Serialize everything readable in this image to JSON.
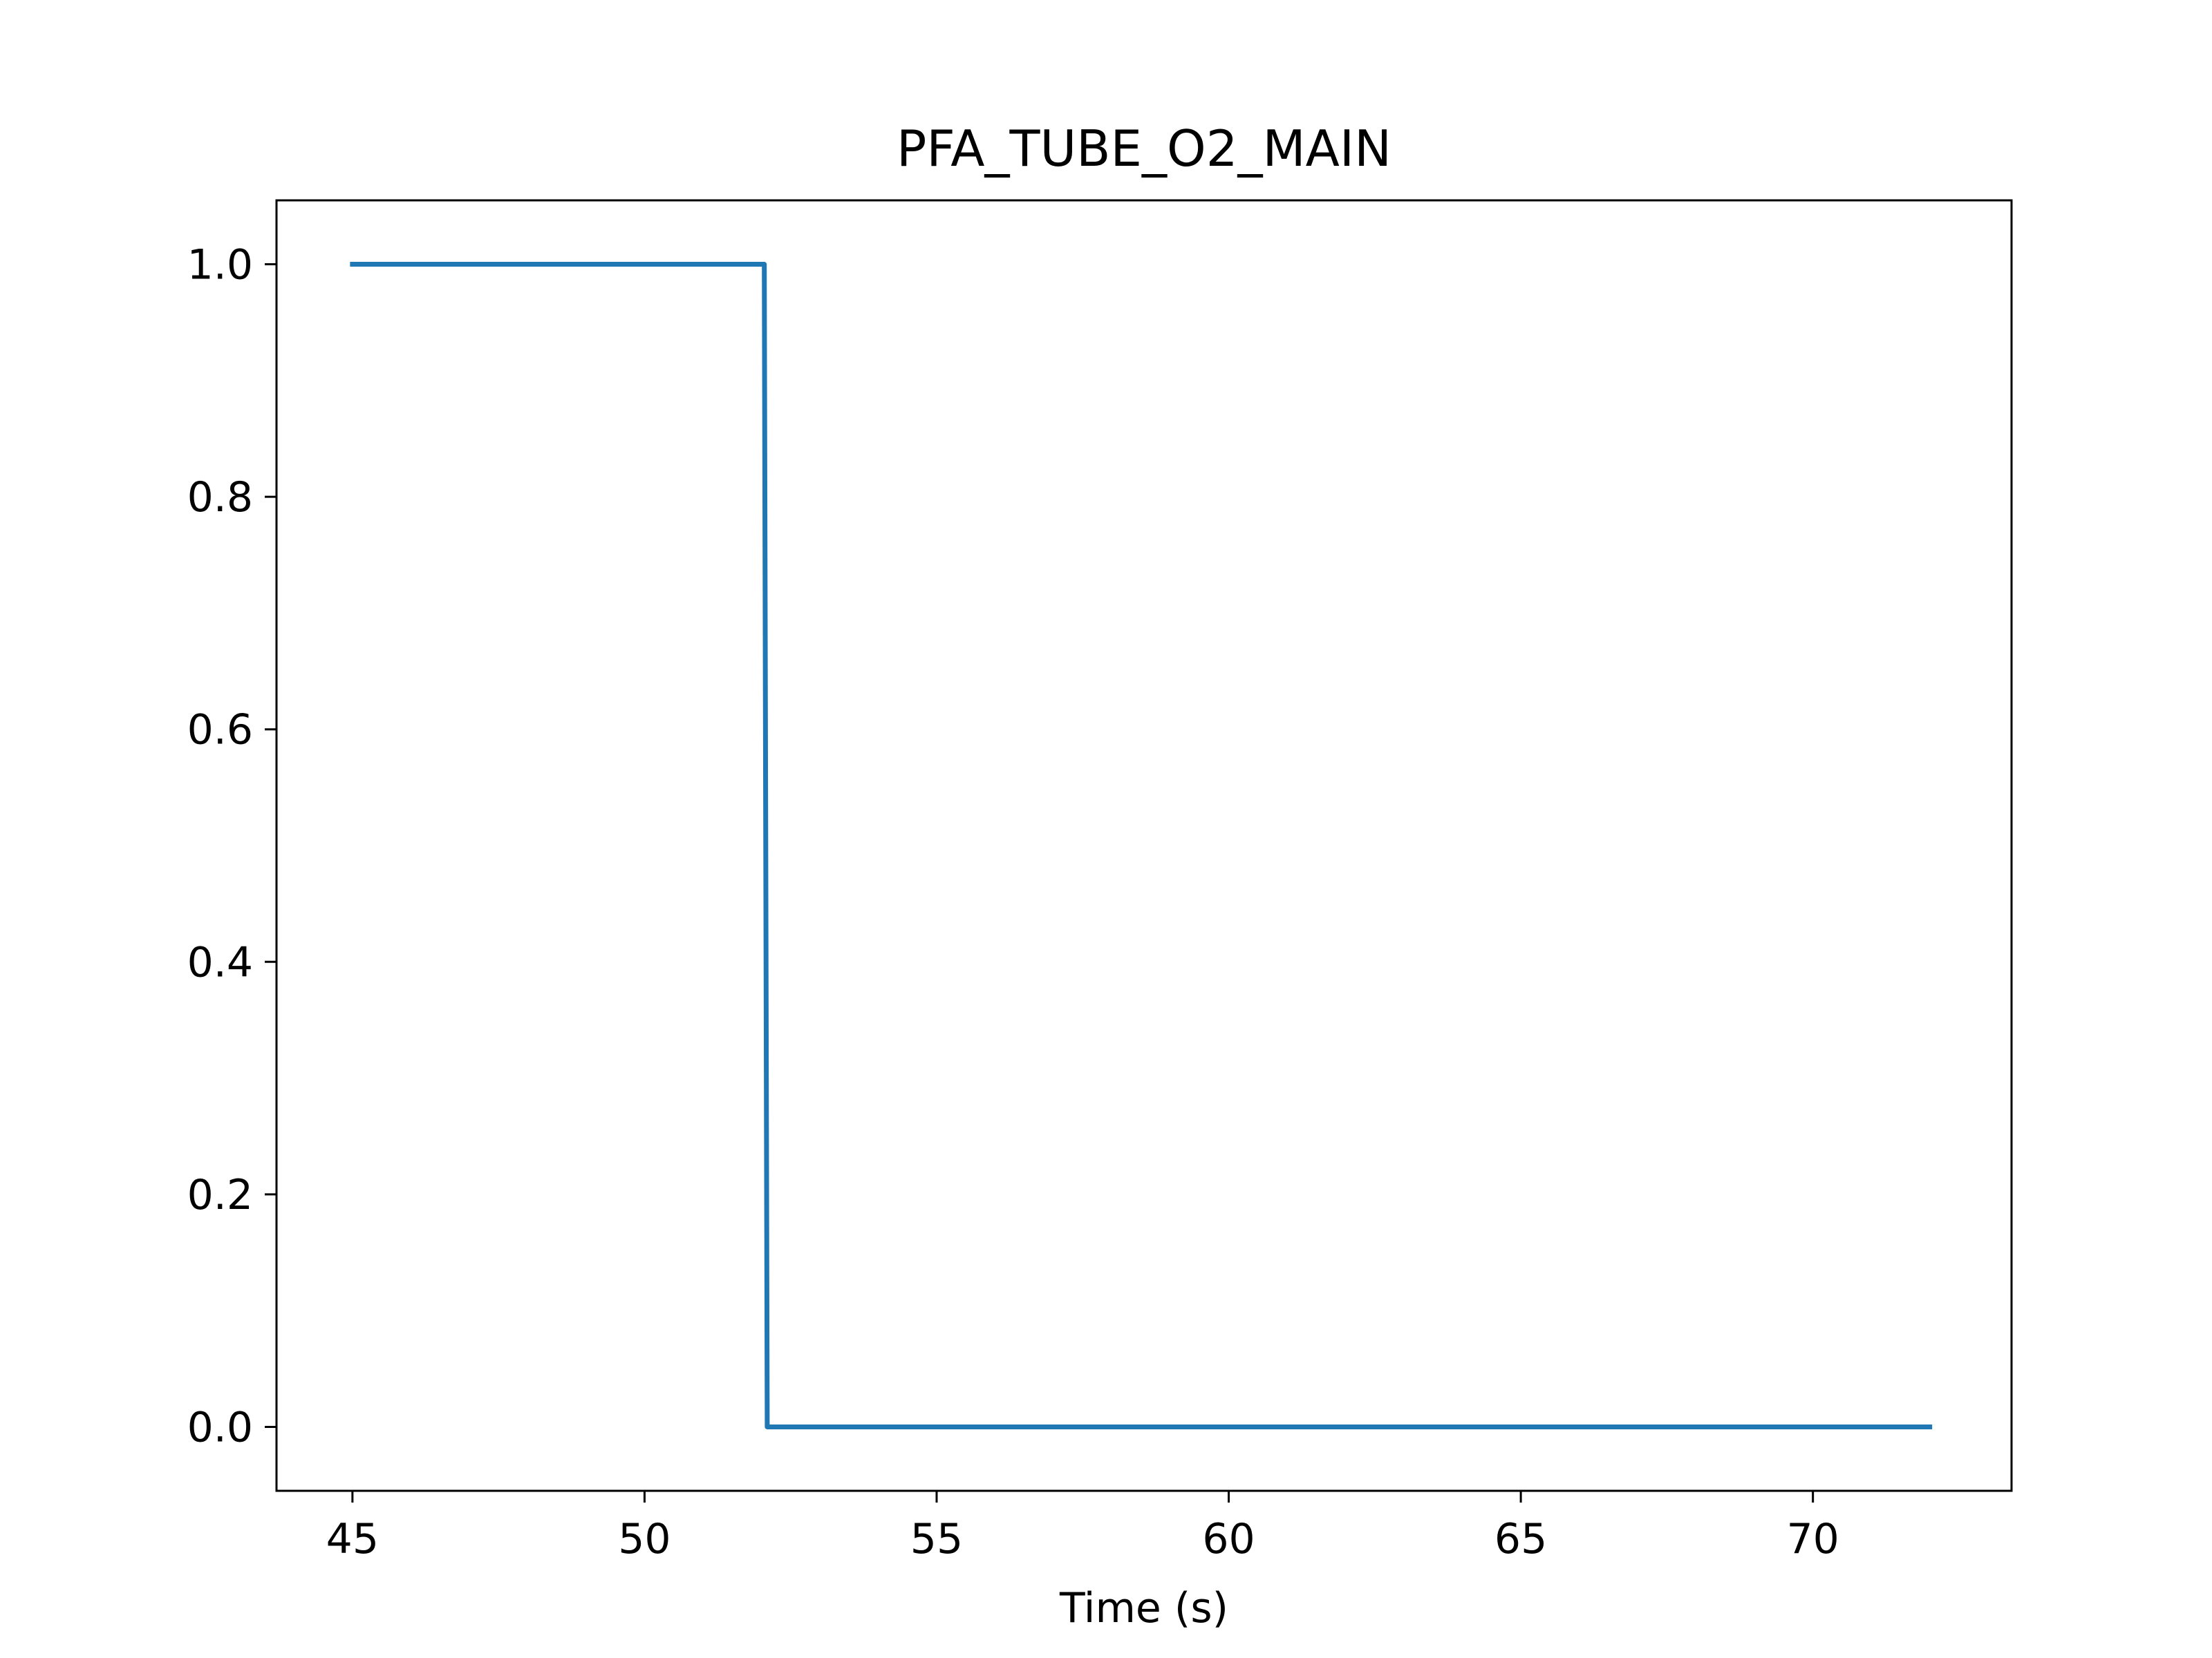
{
  "chart_data": {
    "type": "line",
    "title": "PFA_TUBE_O2_MAIN",
    "xlabel": "Time (s)",
    "ylabel": "",
    "xlim": [
      43.7,
      73.4
    ],
    "ylim": [
      -0.055,
      1.055
    ],
    "xticks": [
      45,
      50,
      55,
      60,
      65,
      70
    ],
    "xtick_labels": [
      "45",
      "50",
      "55",
      "60",
      "65",
      "70"
    ],
    "yticks": [
      0.0,
      0.2,
      0.4,
      0.6,
      0.8,
      1.0
    ],
    "ytick_labels": [
      "0.0",
      "0.2",
      "0.4",
      "0.6",
      "0.8",
      "1.0"
    ],
    "grid": false,
    "series": [
      {
        "color": "#1f77b4",
        "x": [
          45.0,
          52.05,
          52.1,
          52.15,
          72.0
        ],
        "y": [
          1.0,
          1.0,
          0.0,
          0.0,
          0.0
        ]
      }
    ]
  }
}
